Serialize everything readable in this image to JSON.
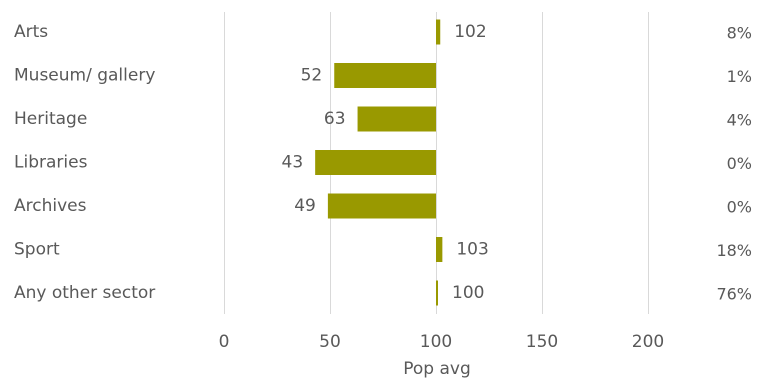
{
  "chart_data": {
    "type": "bar",
    "orientation": "horizontal",
    "categories": [
      "Arts",
      "Museum/ gallery",
      "Heritage",
      "Libraries",
      "Archives",
      "Sport",
      "Any other sector"
    ],
    "values": [
      102,
      52,
      63,
      43,
      49,
      103,
      100
    ],
    "value_labels": [
      "102",
      "52",
      "63",
      "43",
      "49",
      "103",
      "100"
    ],
    "percent_labels": [
      "8%",
      "1%",
      "4%",
      "0%",
      "0%",
      "18%",
      "76%"
    ],
    "baseline": 100,
    "xlim": [
      0,
      200
    ],
    "xticks": [
      0,
      50,
      100,
      150,
      200
    ],
    "xlabel": "Pop avg",
    "grid": true,
    "bar_color": "#999900",
    "grid_color": "#d9d9d9"
  }
}
